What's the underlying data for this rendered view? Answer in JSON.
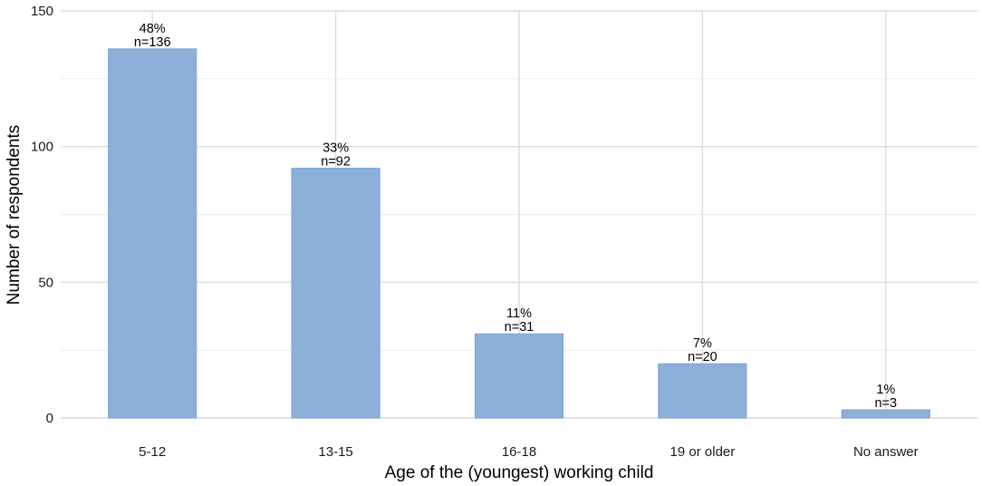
{
  "chart_data": {
    "type": "bar",
    "title": "",
    "xlabel": "Age of the (youngest) working child",
    "ylabel": "Number of respondents",
    "ylim": [
      0,
      150
    ],
    "yticks": [
      0,
      50,
      100,
      150
    ],
    "grid": true,
    "legend": "none",
    "bar_color": "#8db0d8",
    "categories": [
      "5-12",
      "13-15",
      "16-18",
      "19 or older",
      "No answer"
    ],
    "values": [
      136,
      92,
      31,
      20,
      3
    ],
    "percent_labels": [
      "48%",
      "33%",
      "11%",
      "7%",
      "1%"
    ],
    "n_labels": [
      "n=136",
      "n=92",
      "n=31",
      "n=20",
      "n=3"
    ]
  }
}
